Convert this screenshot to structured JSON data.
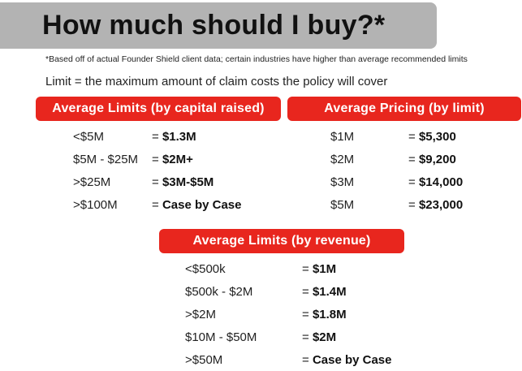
{
  "header": {
    "title": "How much should I buy?*",
    "footnote": "*Based off of actual Founder Shield client data; certain industries have higher than average recommended limits",
    "limit_definition": "Limit = the maximum amount of claim costs the policy will cover"
  },
  "capital_section": {
    "heading": "Average Limits (by capital raised)",
    "rows": [
      {
        "label": "<$5M",
        "prefix": "= ",
        "value": "$1.3M"
      },
      {
        "label": "$5M - $25M",
        "prefix": "= ",
        "value": "$2M+"
      },
      {
        "label": ">$25M",
        "prefix": "= ",
        "value": "$3M-$5M"
      },
      {
        "label": ">$100M",
        "prefix": "= ",
        "value": "Case by Case"
      }
    ]
  },
  "pricing_section": {
    "heading": "Average Pricing (by limit)",
    "rows": [
      {
        "label": "$1M",
        "prefix": "= ",
        "value": "$5,300"
      },
      {
        "label": "$2M",
        "prefix": "= ",
        "value": "$9,200"
      },
      {
        "label": "$3M",
        "prefix": "= ",
        "value": "$14,000"
      },
      {
        "label": "$5M",
        "prefix": "= ",
        "value": "$23,000"
      }
    ]
  },
  "revenue_section": {
    "heading": "Average Limits (by revenue)",
    "rows": [
      {
        "label": "<$500k",
        "prefix": "= ",
        "value": "$1M"
      },
      {
        "label": "$500k - $2M",
        "prefix": "= ",
        "value": "$1.4M"
      },
      {
        "label": ">$2M",
        "prefix": "= ",
        "value": "$1.8M"
      },
      {
        "label": "$10M - $50M",
        "prefix": "= ",
        "value": "$2M"
      },
      {
        "label": ">$50M",
        "prefix": "= ",
        "value": "Case by Case"
      }
    ]
  },
  "colors": {
    "accent_red": "#e8261e",
    "title_box_gray": "#b3b3b3"
  }
}
